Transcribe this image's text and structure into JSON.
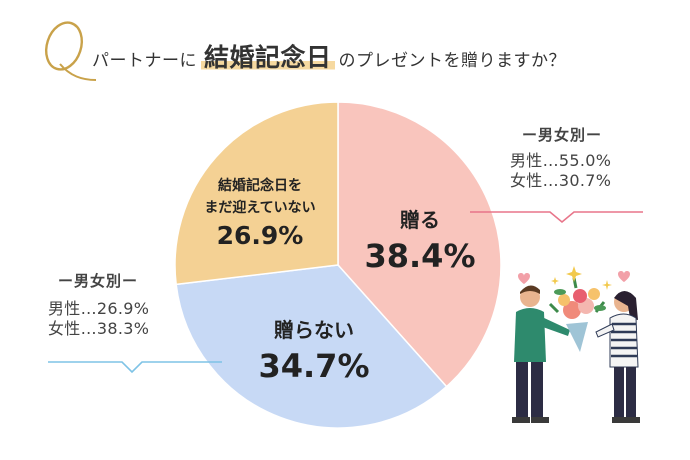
{
  "title": {
    "prefix": "パートナーに",
    "highlight": "結婚記念日",
    "suffix": "のプレゼントを贈りますか？",
    "q_letter": "Q"
  },
  "chart_data": {
    "type": "pie",
    "slices": [
      {
        "name": "贈る",
        "value": 38.4,
        "label": "38.4%",
        "color": "#f9c5bd"
      },
      {
        "name": "贈らない",
        "value": 34.7,
        "label": "34.7%",
        "color": "#c7d9f5"
      },
      {
        "name": "結婚記念日をまだ迎えていない",
        "name_lines": [
          "結婚記念日を",
          "まだ迎えていない"
        ],
        "value": 26.9,
        "label": "26.9%",
        "color": "#f4d194"
      }
    ]
  },
  "breakdown_give": {
    "title": "ー男女別ー",
    "male": "男性…55.0%",
    "female": "女性…30.7%",
    "line_color": "#e8758a"
  },
  "breakdown_not": {
    "title": "ー男女別ー",
    "male": "男性…26.9%",
    "female": "女性…38.3%",
    "line_color": "#7ec3e6"
  },
  "colors": {
    "q_gold": "#c9a24a",
    "highlight": "#f6d9a0"
  }
}
